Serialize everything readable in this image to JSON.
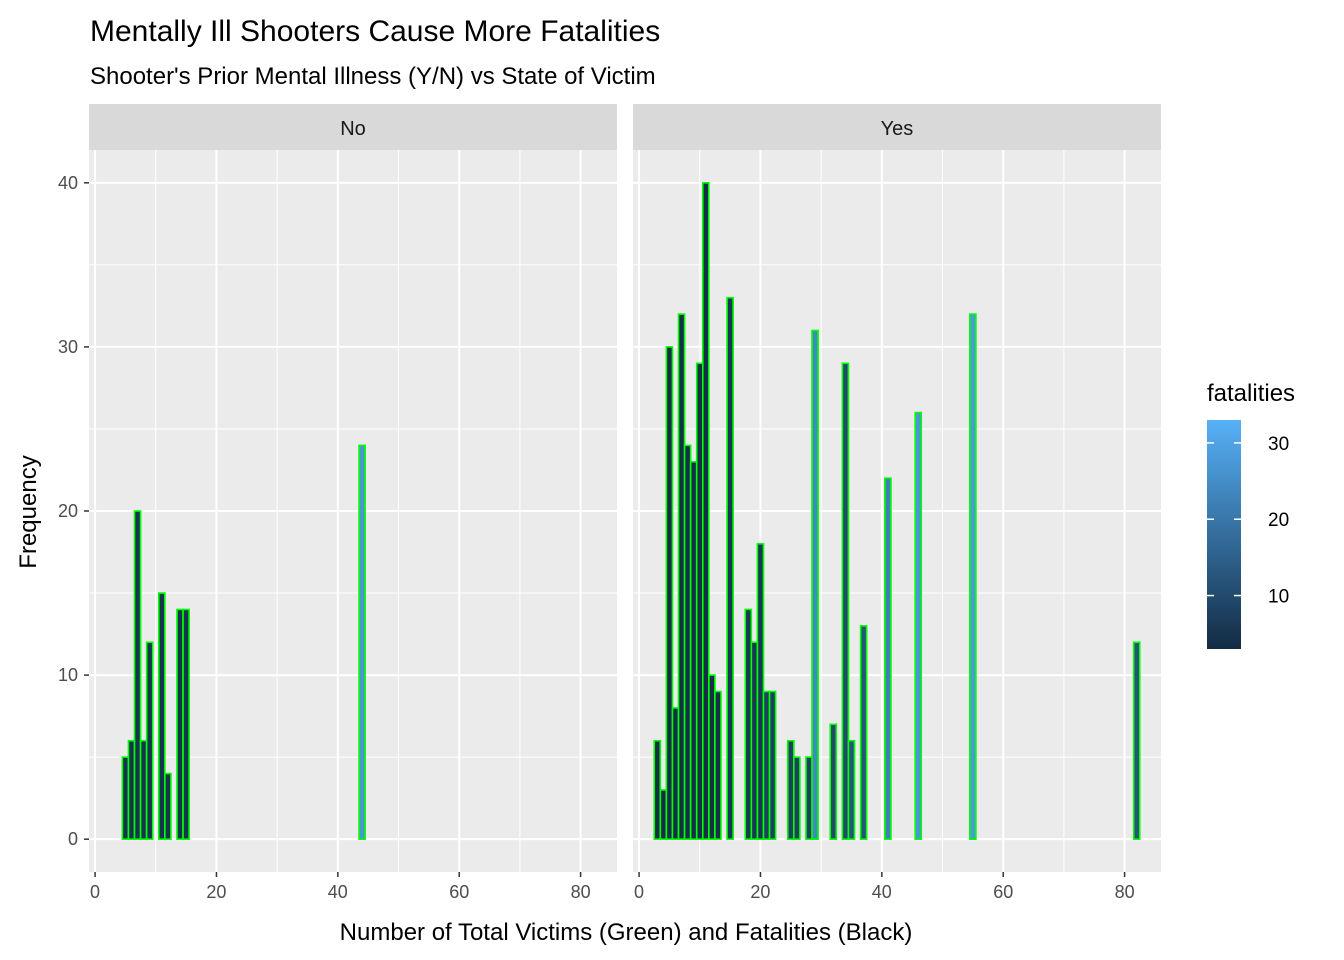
{
  "chart_data": {
    "type": "bar",
    "title": "Mentally Ill Shooters Cause More Fatalities",
    "subtitle": "Shooter's Prior Mental Illness (Y/N) vs State of Victim",
    "xlabel": "Number of Total Victims (Green) and Fatalities (Black)",
    "ylabel": "Frequency",
    "xlim": [
      -1,
      86
    ],
    "ylim": [
      -2,
      42
    ],
    "xticks": [
      0,
      20,
      40,
      60,
      80
    ],
    "yticks": [
      0,
      10,
      20,
      30,
      40
    ],
    "grid": true,
    "bar_outline_color": "#00ff00",
    "panel_background": "#ebebeb",
    "strip_background": "#d9d9d9",
    "legend": {
      "title": "fatalities",
      "position": "right",
      "range": [
        3,
        33
      ],
      "ticks": [
        10,
        20,
        30
      ],
      "color_low": "#132b43",
      "color_high": "#56b1f7"
    },
    "panels": [
      {
        "label": "No",
        "bars": [
          {
            "x": 5,
            "y": 5,
            "fatalities": 5
          },
          {
            "x": 6,
            "y": 6,
            "fatalities": 5
          },
          {
            "x": 7,
            "y": 20,
            "fatalities": 5
          },
          {
            "x": 8,
            "y": 6,
            "fatalities": 5
          },
          {
            "x": 9,
            "y": 12,
            "fatalities": 5
          },
          {
            "x": 11,
            "y": 15,
            "fatalities": 5
          },
          {
            "x": 12,
            "y": 4,
            "fatalities": 5
          },
          {
            "x": 14,
            "y": 14,
            "fatalities": 5
          },
          {
            "x": 15,
            "y": 14,
            "fatalities": 5
          },
          {
            "x": 44,
            "y": 24,
            "fatalities": 27
          }
        ]
      },
      {
        "label": "Yes",
        "bars": [
          {
            "x": 3,
            "y": 6,
            "fatalities": 4
          },
          {
            "x": 4,
            "y": 3,
            "fatalities": 4
          },
          {
            "x": 5,
            "y": 30,
            "fatalities": 4
          },
          {
            "x": 6,
            "y": 8,
            "fatalities": 4
          },
          {
            "x": 7,
            "y": 32,
            "fatalities": 4
          },
          {
            "x": 8,
            "y": 24,
            "fatalities": 4
          },
          {
            "x": 9,
            "y": 23,
            "fatalities": 4
          },
          {
            "x": 10,
            "y": 29,
            "fatalities": 4
          },
          {
            "x": 11,
            "y": 40,
            "fatalities": 4
          },
          {
            "x": 12,
            "y": 10,
            "fatalities": 4
          },
          {
            "x": 13,
            "y": 9,
            "fatalities": 4
          },
          {
            "x": 15,
            "y": 33,
            "fatalities": 6
          },
          {
            "x": 18,
            "y": 14,
            "fatalities": 6
          },
          {
            "x": 19,
            "y": 12,
            "fatalities": 6
          },
          {
            "x": 20,
            "y": 18,
            "fatalities": 6
          },
          {
            "x": 21,
            "y": 9,
            "fatalities": 8
          },
          {
            "x": 22,
            "y": 9,
            "fatalities": 8
          },
          {
            "x": 25,
            "y": 6,
            "fatalities": 8
          },
          {
            "x": 26,
            "y": 5,
            "fatalities": 8
          },
          {
            "x": 28,
            "y": 5,
            "fatalities": 8
          },
          {
            "x": 29,
            "y": 31,
            "fatalities": 24
          },
          {
            "x": 32,
            "y": 7,
            "fatalities": 10
          },
          {
            "x": 34,
            "y": 29,
            "fatalities": 10
          },
          {
            "x": 35,
            "y": 6,
            "fatalities": 12
          },
          {
            "x": 37,
            "y": 13,
            "fatalities": 12
          },
          {
            "x": 41,
            "y": 22,
            "fatalities": 22
          },
          {
            "x": 46,
            "y": 26,
            "fatalities": 27
          },
          {
            "x": 55,
            "y": 32,
            "fatalities": 28
          },
          {
            "x": 82,
            "y": 12,
            "fatalities": 12
          }
        ]
      }
    ]
  }
}
